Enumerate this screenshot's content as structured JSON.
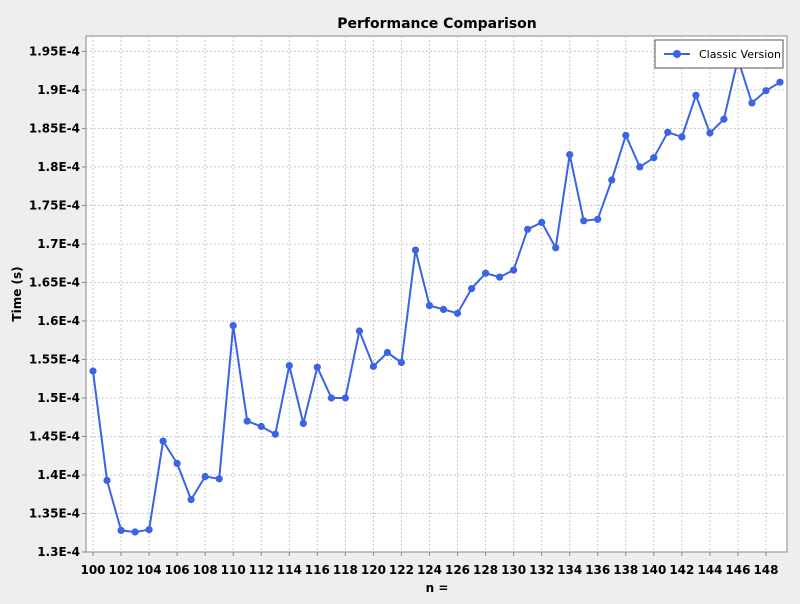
{
  "chart_data": {
    "type": "line",
    "title": "Performance Comparison",
    "xlabel": "n =",
    "ylabel": "Time (s)",
    "ylim": [
      0.00013,
      0.000197
    ],
    "xlim": [
      99.5,
      149.5
    ],
    "grid": true,
    "legend_position": "top-right",
    "x_ticks": [
      100,
      102,
      104,
      106,
      108,
      110,
      112,
      114,
      116,
      118,
      120,
      122,
      124,
      126,
      128,
      130,
      132,
      134,
      136,
      138,
      140,
      142,
      144,
      146,
      148
    ],
    "y_ticks": [
      {
        "value": 0.00013,
        "label": "1.3E-4"
      },
      {
        "value": 0.000135,
        "label": "1.35E-4"
      },
      {
        "value": 0.00014,
        "label": "1.4E-4"
      },
      {
        "value": 0.000145,
        "label": "1.45E-4"
      },
      {
        "value": 0.00015,
        "label": "1.5E-4"
      },
      {
        "value": 0.000155,
        "label": "1.55E-4"
      },
      {
        "value": 0.00016,
        "label": "1.6E-4"
      },
      {
        "value": 0.000165,
        "label": "1.65E-4"
      },
      {
        "value": 0.00017,
        "label": "1.7E-4"
      },
      {
        "value": 0.000175,
        "label": "1.75E-4"
      },
      {
        "value": 0.00018,
        "label": "1.8E-4"
      },
      {
        "value": 0.000185,
        "label": "1.85E-4"
      },
      {
        "value": 0.00019,
        "label": "1.9E-4"
      },
      {
        "value": 0.000195,
        "label": "1.95E-4"
      }
    ],
    "series": [
      {
        "name": "Classic Version",
        "color": "#3a63e6",
        "x": [
          100,
          101,
          102,
          103,
          104,
          105,
          106,
          107,
          108,
          109,
          110,
          111,
          112,
          113,
          114,
          115,
          116,
          117,
          118,
          119,
          120,
          121,
          122,
          123,
          124,
          125,
          126,
          127,
          128,
          129,
          130,
          131,
          132,
          133,
          134,
          135,
          136,
          137,
          138,
          139,
          140,
          141,
          142,
          143,
          144,
          145,
          146,
          147,
          148,
          149
        ],
        "values": [
          0.0001535,
          0.0001393,
          0.0001328,
          0.0001326,
          0.0001329,
          0.0001444,
          0.0001415,
          0.0001368,
          0.0001398,
          0.0001395,
          0.0001594,
          0.000147,
          0.0001463,
          0.0001453,
          0.0001542,
          0.0001467,
          0.000154,
          0.00015,
          0.00015,
          0.0001587,
          0.0001541,
          0.0001559,
          0.0001546,
          0.0001692,
          0.000162,
          0.0001615,
          0.000161,
          0.0001642,
          0.0001662,
          0.0001657,
          0.0001666,
          0.0001719,
          0.0001728,
          0.0001695,
          0.0001816,
          0.000173,
          0.0001732,
          0.0001783,
          0.0001841,
          0.00018,
          0.0001812,
          0.0001845,
          0.0001839,
          0.0001893,
          0.0001844,
          0.0001862,
          0.000194,
          0.0001883,
          0.0001899,
          0.000191
        ]
      }
    ]
  }
}
